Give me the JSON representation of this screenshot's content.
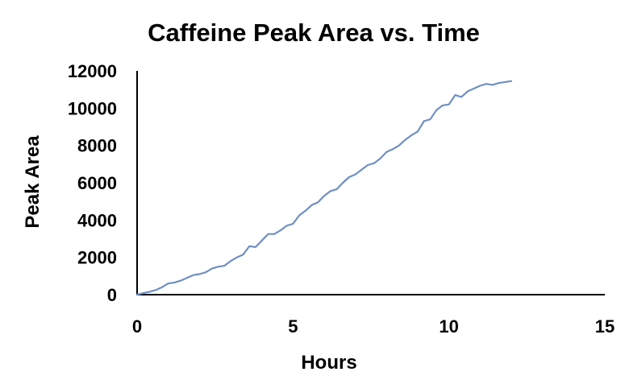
{
  "chart_data": {
    "type": "line",
    "title": "Caffeine Peak Area vs. Time",
    "xlabel": "Hours",
    "ylabel": "Peak Area",
    "xlim": [
      0,
      15
    ],
    "ylim": [
      0,
      12000
    ],
    "xticks": [
      "0",
      "5",
      "10",
      "15"
    ],
    "yticks": [
      "0",
      "2000",
      "4000",
      "6000",
      "8000",
      "10000",
      "12000"
    ],
    "grid": false,
    "legend": "none",
    "series": [
      {
        "color": "#6f8fc4",
        "x": [
          0.0,
          0.2,
          0.4,
          0.6,
          0.8,
          1.0,
          1.2,
          1.4,
          1.6,
          1.8,
          2.0,
          2.2,
          2.4,
          2.6,
          2.8,
          3.0,
          3.2,
          3.4,
          3.6,
          3.8,
          4.0,
          4.2,
          4.4,
          4.6,
          4.8,
          5.0,
          5.2,
          5.4,
          5.6,
          5.8,
          6.0,
          6.2,
          6.4,
          6.6,
          6.8,
          7.0,
          7.2,
          7.4,
          7.6,
          7.8,
          8.0,
          8.2,
          8.4,
          8.6,
          8.8,
          9.0,
          9.2,
          9.4,
          9.6,
          9.8,
          10.0,
          10.2,
          10.4,
          10.6,
          10.8,
          11.0,
          11.2,
          11.4,
          11.6,
          11.8,
          12.0
        ],
        "y": [
          0,
          80,
          150,
          250,
          400,
          600,
          650,
          750,
          900,
          1050,
          1100,
          1200,
          1400,
          1500,
          1550,
          1800,
          2000,
          2150,
          2600,
          2550,
          2900,
          3250,
          3250,
          3450,
          3700,
          3800,
          4250,
          4500,
          4800,
          4950,
          5300,
          5550,
          5650,
          6000,
          6300,
          6450,
          6700,
          6950,
          7050,
          7300,
          7650,
          7800,
          8000,
          8300,
          8550,
          8750,
          9300,
          9400,
          9900,
          10150,
          10200,
          10700,
          10600,
          10900,
          11050,
          11200,
          11300,
          11250,
          11350,
          11400,
          11450
        ]
      }
    ]
  }
}
